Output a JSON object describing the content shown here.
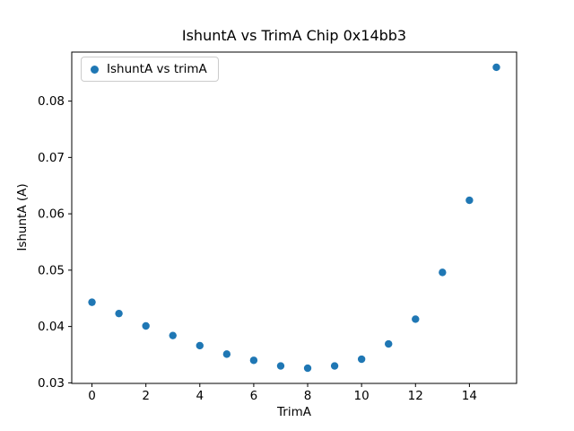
{
  "chart_data": {
    "type": "scatter",
    "title": "IshuntA vs TrimA Chip 0x14bb3",
    "xlabel": "TrimA",
    "ylabel": "IshuntA (A)",
    "legend": {
      "label": "IshuntA vs trimA",
      "position": "upper left"
    },
    "marker_color": "#1f77b4",
    "x": [
      0,
      1,
      2,
      3,
      4,
      5,
      6,
      7,
      8,
      9,
      10,
      11,
      12,
      13,
      14,
      15
    ],
    "y": [
      0.0443,
      0.0423,
      0.0401,
      0.0384,
      0.0366,
      0.0351,
      0.034,
      0.033,
      0.0326,
      0.033,
      0.0342,
      0.0369,
      0.0413,
      0.0496,
      0.0624,
      0.086
    ],
    "xlim": [
      -0.75,
      15.75
    ],
    "ylim": [
      0.0299,
      0.0887
    ],
    "xticks": [
      0,
      2,
      4,
      6,
      8,
      10,
      12,
      14
    ],
    "yticks": [
      0.03,
      0.04,
      0.05,
      0.06,
      0.07,
      0.08
    ],
    "grid": false,
    "axes_color": "#000000",
    "background": "#ffffff"
  }
}
